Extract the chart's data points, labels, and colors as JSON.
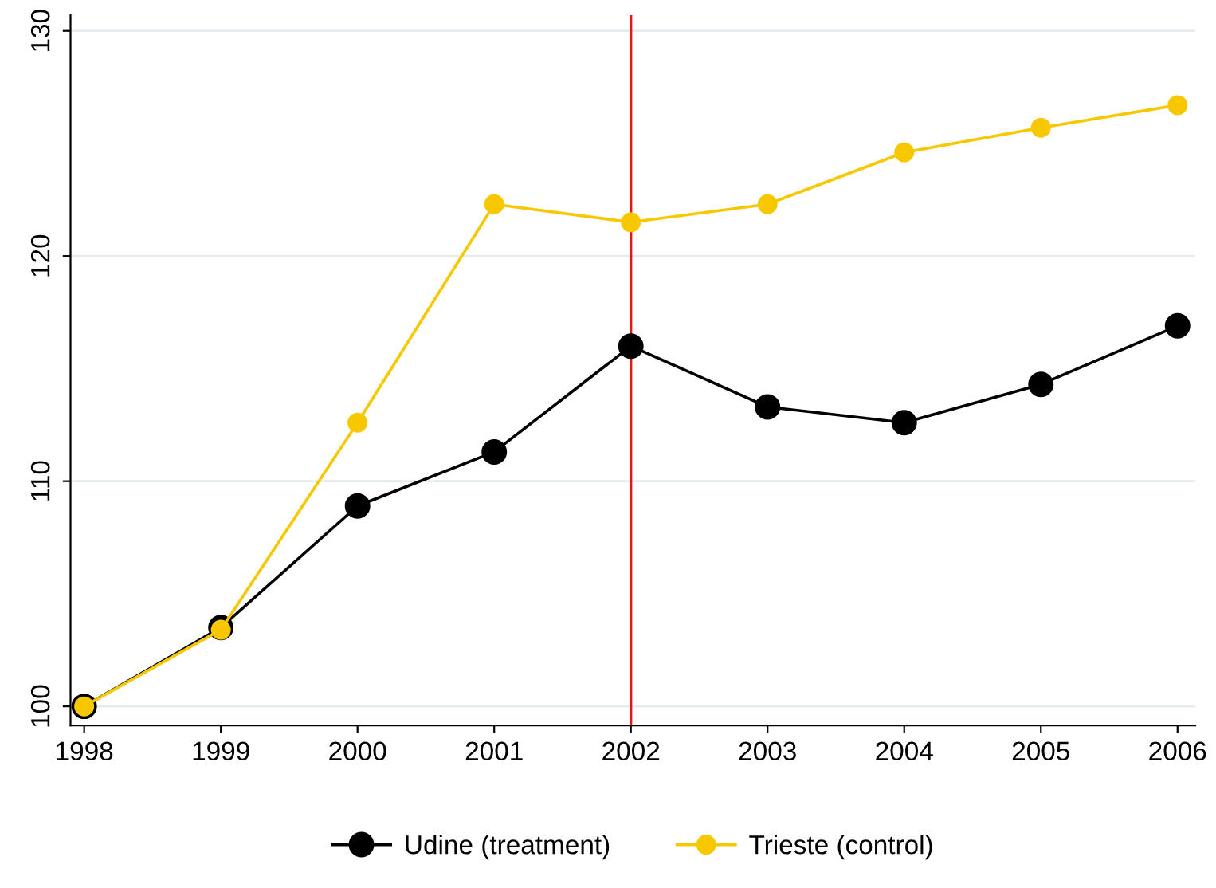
{
  "chart_data": {
    "type": "line",
    "x": [
      1998,
      1999,
      2000,
      2001,
      2002,
      2003,
      2004,
      2005,
      2006
    ],
    "series": [
      {
        "name": "Udine (treatment)",
        "color": "#000000",
        "values": [
          100,
          103.5,
          108.9,
          111.3,
          116.0,
          113.3,
          112.6,
          114.3,
          116.9
        ]
      },
      {
        "name": "Trieste (control)",
        "color": "#f7c800",
        "values": [
          100,
          103.4,
          112.6,
          122.3,
          121.5,
          122.3,
          124.6,
          125.7,
          126.7
        ]
      }
    ],
    "xlim": [
      1997.9,
      2006.13
    ],
    "xticks": [
      1998,
      1999,
      2000,
      2001,
      2002,
      2003,
      2004,
      2005,
      2006
    ],
    "ylim": [
      99.15,
      130.7
    ],
    "yticks": [
      100,
      110,
      120,
      130
    ],
    "ref_lines": [
      {
        "axis": "x",
        "value": 2002,
        "color": "#e8141c"
      }
    ],
    "grid": "y",
    "legend": "bottom",
    "marker": "circle",
    "line_style": "solid"
  }
}
